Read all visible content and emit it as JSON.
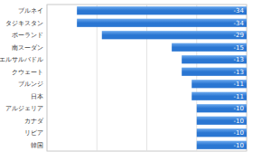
{
  "chart_data": {
    "type": "bar",
    "orientation": "horizontal",
    "categories": [
      "ブルネイ",
      "タジキスタン",
      "ポーランド",
      "南スーダン",
      "エルサルバドル",
      "クウェート",
      "ブルンジ",
      "日本",
      "アルジェリア",
      "カナダ",
      "リビア",
      "韓国"
    ],
    "values": [
      -34,
      -34,
      -29,
      -15,
      -13,
      -13,
      -11,
      -11,
      -10,
      -10,
      -10,
      -10
    ],
    "color": "#2a76d2",
    "xlim": [
      -40,
      0
    ],
    "xticks": [
      -40,
      -30,
      -20,
      -10,
      0
    ],
    "grid": true,
    "data_labels": true,
    "tick_labels": "y"
  }
}
